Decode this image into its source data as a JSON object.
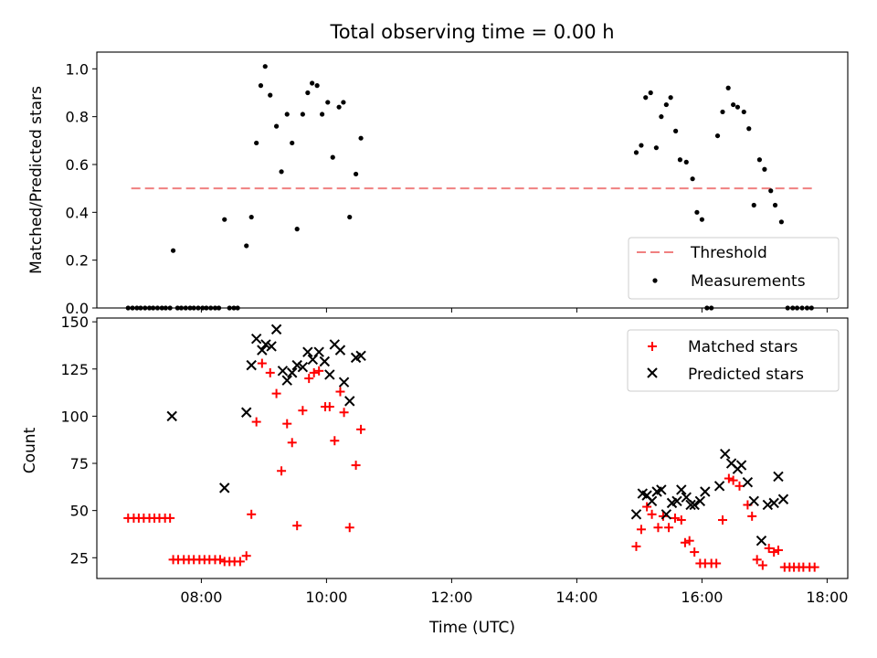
{
  "chart_data": [
    {
      "type": "scatter",
      "title": "Total observing time = 0.00 h",
      "ylabel": "Matched/Predicted stars",
      "xlabel": "",
      "x_unit": "hours UTC",
      "xlim": [
        6.33,
        18.33
      ],
      "ylim": [
        0,
        1.07
      ],
      "yticks": [
        0.0,
        0.2,
        0.4,
        0.6,
        0.8,
        1.0
      ],
      "ytick_labels": [
        "0.0",
        "0.2",
        "0.4",
        "0.6",
        "0.8",
        "1.0"
      ],
      "legend_location": "lower right",
      "threshold": {
        "name": "Threshold",
        "value": 0.5,
        "x_range": [
          6.88,
          17.82
        ],
        "color": "#f08080"
      },
      "series": [
        {
          "name": "Measurements",
          "color": "#000000",
          "marker": "dot",
          "points": [
            [
              6.83,
              0
            ],
            [
              6.9,
              0
            ],
            [
              6.97,
              0
            ],
            [
              7.03,
              0
            ],
            [
              7.1,
              0
            ],
            [
              7.17,
              0
            ],
            [
              7.23,
              0
            ],
            [
              7.3,
              0
            ],
            [
              7.37,
              0
            ],
            [
              7.43,
              0
            ],
            [
              7.5,
              0
            ],
            [
              7.55,
              0.24
            ],
            [
              7.62,
              0
            ],
            [
              7.68,
              0
            ],
            [
              7.75,
              0
            ],
            [
              7.82,
              0
            ],
            [
              7.88,
              0
            ],
            [
              7.95,
              0
            ],
            [
              8.02,
              0
            ],
            [
              8.08,
              0
            ],
            [
              8.15,
              0
            ],
            [
              8.22,
              0
            ],
            [
              8.28,
              0
            ],
            [
              8.37,
              0.37
            ],
            [
              8.45,
              0
            ],
            [
              8.52,
              0
            ],
            [
              8.58,
              0
            ],
            [
              8.72,
              0.26
            ],
            [
              8.8,
              0.38
            ],
            [
              8.88,
              0.69
            ],
            [
              8.95,
              0.93
            ],
            [
              9.02,
              1.01
            ],
            [
              9.1,
              0.89
            ],
            [
              9.2,
              0.76
            ],
            [
              9.28,
              0.57
            ],
            [
              9.37,
              0.81
            ],
            [
              9.45,
              0.69
            ],
            [
              9.53,
              0.33
            ],
            [
              9.62,
              0.81
            ],
            [
              9.7,
              0.9
            ],
            [
              9.77,
              0.94
            ],
            [
              9.85,
              0.93
            ],
            [
              9.93,
              0.81
            ],
            [
              10.02,
              0.86
            ],
            [
              10.1,
              0.63
            ],
            [
              10.2,
              0.84
            ],
            [
              10.27,
              0.86
            ],
            [
              10.37,
              0.38
            ],
            [
              10.47,
              0.56
            ],
            [
              10.55,
              0.71
            ],
            [
              14.95,
              0.65
            ],
            [
              15.03,
              0.68
            ],
            [
              15.1,
              0.88
            ],
            [
              15.18,
              0.9
            ],
            [
              15.27,
              0.67
            ],
            [
              15.35,
              0.8
            ],
            [
              15.43,
              0.85
            ],
            [
              15.5,
              0.88
            ],
            [
              15.58,
              0.74
            ],
            [
              15.65,
              0.62
            ],
            [
              15.75,
              0.61
            ],
            [
              15.85,
              0.54
            ],
            [
              15.92,
              0.4
            ],
            [
              16.0,
              0.37
            ],
            [
              16.08,
              0
            ],
            [
              16.15,
              0
            ],
            [
              16.25,
              0.72
            ],
            [
              16.33,
              0.82
            ],
            [
              16.42,
              0.92
            ],
            [
              16.5,
              0.85
            ],
            [
              16.57,
              0.84
            ],
            [
              16.67,
              0.82
            ],
            [
              16.75,
              0.75
            ],
            [
              16.83,
              0.43
            ],
            [
              16.92,
              0.62
            ],
            [
              17.0,
              0.58
            ],
            [
              17.1,
              0.49
            ],
            [
              17.17,
              0.43
            ],
            [
              17.27,
              0.36
            ],
            [
              17.37,
              0
            ],
            [
              17.45,
              0
            ],
            [
              17.52,
              0
            ],
            [
              17.6,
              0
            ],
            [
              17.68,
              0
            ],
            [
              17.75,
              0
            ]
          ]
        }
      ]
    },
    {
      "type": "scatter",
      "title": "",
      "xlabel": "Time (UTC)",
      "ylabel": "Count",
      "xlim": [
        6.33,
        18.33
      ],
      "ylim": [
        14,
        152
      ],
      "xticks": [
        8,
        10,
        12,
        14,
        16,
        18
      ],
      "xtick_labels": [
        "08:00",
        "10:00",
        "12:00",
        "14:00",
        "16:00",
        "18:00"
      ],
      "yticks": [
        25,
        50,
        75,
        100,
        125,
        150
      ],
      "ytick_labels": [
        "25",
        "50",
        "75",
        "100",
        "125",
        "150"
      ],
      "legend_location": "upper right",
      "series": [
        {
          "name": "Matched stars",
          "color": "#ff0000",
          "marker": "plus",
          "points": [
            [
              6.83,
              46
            ],
            [
              6.92,
              46
            ],
            [
              7.0,
              46
            ],
            [
              7.08,
              46
            ],
            [
              7.17,
              46
            ],
            [
              7.25,
              46
            ],
            [
              7.33,
              46
            ],
            [
              7.42,
              46
            ],
            [
              7.5,
              46
            ],
            [
              7.55,
              24
            ],
            [
              7.63,
              24
            ],
            [
              7.72,
              24
            ],
            [
              7.8,
              24
            ],
            [
              7.88,
              24
            ],
            [
              7.97,
              24
            ],
            [
              8.05,
              24
            ],
            [
              8.13,
              24
            ],
            [
              8.22,
              24
            ],
            [
              8.3,
              24
            ],
            [
              8.37,
              23
            ],
            [
              8.45,
              23
            ],
            [
              8.53,
              23
            ],
            [
              8.62,
              23
            ],
            [
              8.72,
              26
            ],
            [
              8.8,
              48
            ],
            [
              8.88,
              97
            ],
            [
              8.97,
              128
            ],
            [
              9.1,
              123
            ],
            [
              9.2,
              112
            ],
            [
              9.28,
              71
            ],
            [
              9.37,
              96
            ],
            [
              9.45,
              86
            ],
            [
              9.53,
              42
            ],
            [
              9.62,
              103
            ],
            [
              9.72,
              120
            ],
            [
              9.8,
              123
            ],
            [
              9.88,
              124
            ],
            [
              9.98,
              105
            ],
            [
              10.05,
              105
            ],
            [
              10.13,
              87
            ],
            [
              10.22,
              113
            ],
            [
              10.28,
              102
            ],
            [
              10.37,
              41
            ],
            [
              10.47,
              74
            ],
            [
              10.55,
              93
            ],
            [
              14.95,
              31
            ],
            [
              15.03,
              40
            ],
            [
              15.12,
              52
            ],
            [
              15.2,
              48
            ],
            [
              15.3,
              41
            ],
            [
              15.38,
              47
            ],
            [
              15.47,
              41
            ],
            [
              15.57,
              46
            ],
            [
              15.67,
              45
            ],
            [
              15.73,
              33
            ],
            [
              15.8,
              34
            ],
            [
              15.88,
              28
            ],
            [
              15.97,
              22
            ],
            [
              16.05,
              22
            ],
            [
              16.15,
              22
            ],
            [
              16.23,
              22
            ],
            [
              16.33,
              45
            ],
            [
              16.43,
              67
            ],
            [
              16.5,
              66
            ],
            [
              16.6,
              63
            ],
            [
              16.73,
              53
            ],
            [
              16.8,
              47
            ],
            [
              16.88,
              24
            ],
            [
              16.97,
              21
            ],
            [
              17.07,
              30
            ],
            [
              17.15,
              28
            ],
            [
              17.22,
              29
            ],
            [
              17.32,
              20
            ],
            [
              17.4,
              20
            ],
            [
              17.47,
              20
            ],
            [
              17.55,
              20
            ],
            [
              17.62,
              20
            ],
            [
              17.72,
              20
            ],
            [
              17.8,
              20
            ]
          ]
        },
        {
          "name": "Predicted stars",
          "color": "#000000",
          "marker": "x",
          "points": [
            [
              7.53,
              100
            ],
            [
              8.37,
              62
            ],
            [
              8.72,
              102
            ],
            [
              8.8,
              127
            ],
            [
              8.88,
              141
            ],
            [
              8.97,
              135
            ],
            [
              9.03,
              138
            ],
            [
              9.12,
              137
            ],
            [
              9.2,
              146
            ],
            [
              9.3,
              124
            ],
            [
              9.37,
              119
            ],
            [
              9.45,
              123
            ],
            [
              9.53,
              127
            ],
            [
              9.62,
              126
            ],
            [
              9.7,
              134
            ],
            [
              9.78,
              130
            ],
            [
              9.88,
              134
            ],
            [
              9.97,
              129
            ],
            [
              10.05,
              122
            ],
            [
              10.13,
              138
            ],
            [
              10.22,
              135
            ],
            [
              10.28,
              118
            ],
            [
              10.37,
              108
            ],
            [
              10.47,
              131
            ],
            [
              10.55,
              132
            ],
            [
              14.95,
              48
            ],
            [
              15.05,
              59
            ],
            [
              15.12,
              58
            ],
            [
              15.2,
              55
            ],
            [
              15.28,
              60
            ],
            [
              15.35,
              61
            ],
            [
              15.43,
              48
            ],
            [
              15.52,
              54
            ],
            [
              15.6,
              55
            ],
            [
              15.67,
              61
            ],
            [
              15.75,
              57
            ],
            [
              15.82,
              53
            ],
            [
              15.88,
              53
            ],
            [
              15.97,
              55
            ],
            [
              16.05,
              60
            ],
            [
              16.28,
              63
            ],
            [
              16.37,
              80
            ],
            [
              16.47,
              75
            ],
            [
              16.57,
              72
            ],
            [
              16.63,
              74
            ],
            [
              16.73,
              65
            ],
            [
              16.83,
              55
            ],
            [
              16.95,
              34
            ],
            [
              17.05,
              53
            ],
            [
              17.15,
              54
            ],
            [
              17.22,
              68
            ],
            [
              17.3,
              56
            ]
          ]
        }
      ]
    }
  ]
}
